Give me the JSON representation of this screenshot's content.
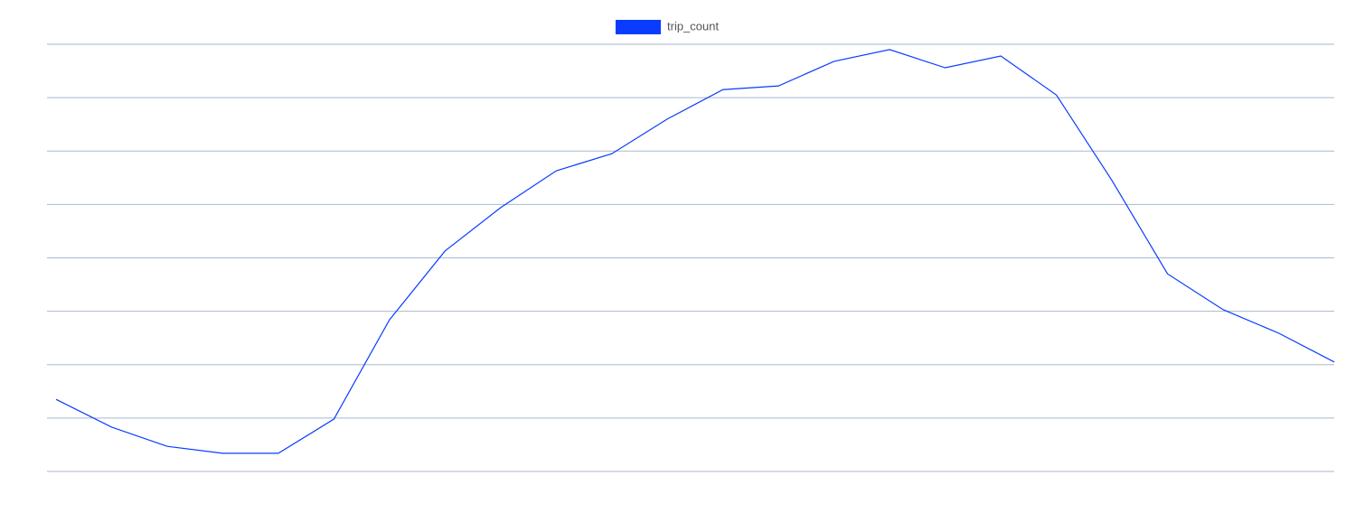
{
  "chart_data": {
    "type": "line",
    "categories": [
      null,
      null,
      null,
      null,
      null,
      null,
      null,
      null,
      null,
      null,
      null,
      null,
      null,
      null,
      null,
      null,
      null,
      null,
      null,
      null,
      null,
      null,
      null,
      null
    ],
    "series": [
      {
        "name": "trip_count",
        "color": "#0a3cff",
        "values": [
          1.35,
          0.83,
          0.47,
          0.34,
          0.34,
          0.98,
          2.84,
          4.13,
          4.94,
          5.63,
          5.95,
          6.6,
          7.15,
          7.22,
          7.68,
          7.9,
          7.56,
          7.78,
          7.05,
          5.45,
          3.7,
          3.03,
          2.59,
          2.05
        ]
      }
    ],
    "ylim": [
      0,
      8
    ],
    "yticks": [
      0,
      1,
      2,
      3,
      4,
      5,
      6,
      7,
      8
    ],
    "grid": true,
    "legend": "top"
  }
}
